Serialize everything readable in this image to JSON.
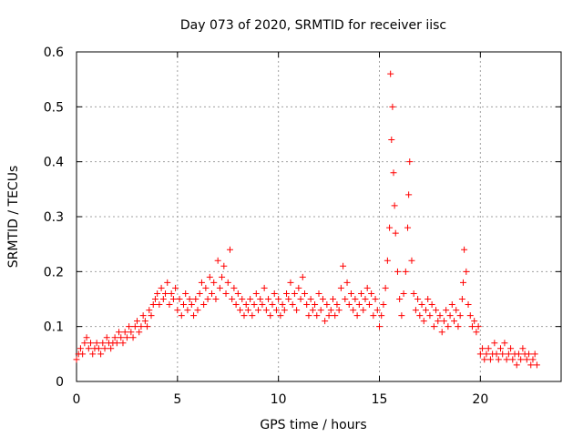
{
  "chart_data": {
    "type": "scatter",
    "title": "Day 073 of 2020, SRMTID for receiver iisc",
    "xlabel": "GPS time / hours",
    "ylabel": "SRMTID / TECUs",
    "xlim": [
      0,
      24
    ],
    "ylim": [
      0,
      0.6
    ],
    "x_ticks": [
      0,
      5,
      10,
      15,
      20
    ],
    "x_tick_labels": [
      "0",
      "5",
      "10",
      "15",
      "20"
    ],
    "y_ticks": [
      0,
      0.1,
      0.2,
      0.3,
      0.4,
      0.5,
      0.6
    ],
    "y_tick_labels": [
      "0",
      "0.1",
      "0.2",
      "0.3",
      "0.4",
      "0.5",
      "0.6"
    ],
    "grid": true,
    "marker": "+",
    "color": "#ff0000",
    "series": [
      {
        "name": "SRMTID",
        "x": [
          0.0,
          0.1,
          0.2,
          0.3,
          0.4,
          0.5,
          0.6,
          0.7,
          0.8,
          0.9,
          1.0,
          1.1,
          1.2,
          1.3,
          1.4,
          1.5,
          1.6,
          1.7,
          1.8,
          1.9,
          2.0,
          2.1,
          2.2,
          2.3,
          2.4,
          2.5,
          2.6,
          2.7,
          2.8,
          2.9,
          3.0,
          3.1,
          3.2,
          3.3,
          3.4,
          3.5,
          3.6,
          3.7,
          3.8,
          3.9,
          4.0,
          4.1,
          4.2,
          4.3,
          4.4,
          4.5,
          4.6,
          4.7,
          4.8,
          4.9,
          5.0,
          5.1,
          5.2,
          5.3,
          5.4,
          5.5,
          5.6,
          5.7,
          5.8,
          5.9,
          6.0,
          6.1,
          6.2,
          6.3,
          6.4,
          6.5,
          6.6,
          6.7,
          6.8,
          6.9,
          7.0,
          7.1,
          7.2,
          7.3,
          7.4,
          7.5,
          7.6,
          7.7,
          7.8,
          7.9,
          8.0,
          8.1,
          8.2,
          8.3,
          8.4,
          8.5,
          8.6,
          8.7,
          8.8,
          8.9,
          9.0,
          9.1,
          9.2,
          9.3,
          9.4,
          9.5,
          9.6,
          9.7,
          9.8,
          9.9,
          10.0,
          10.1,
          10.2,
          10.3,
          10.4,
          10.5,
          10.6,
          10.7,
          10.8,
          10.9,
          11.0,
          11.1,
          11.2,
          11.3,
          11.4,
          11.5,
          11.6,
          11.7,
          11.8,
          11.9,
          12.0,
          12.1,
          12.2,
          12.3,
          12.4,
          12.5,
          12.6,
          12.7,
          12.8,
          12.9,
          13.0,
          13.1,
          13.2,
          13.3,
          13.4,
          13.5,
          13.6,
          13.7,
          13.8,
          13.9,
          14.0,
          14.1,
          14.2,
          14.3,
          14.4,
          14.5,
          14.6,
          14.7,
          14.8,
          14.9,
          15.0,
          15.1,
          15.2,
          15.3,
          15.4,
          15.5,
          15.55,
          15.6,
          15.65,
          15.7,
          15.75,
          15.8,
          15.9,
          16.0,
          16.1,
          16.2,
          16.3,
          16.4,
          16.45,
          16.5,
          16.6,
          16.7,
          16.8,
          16.9,
          17.0,
          17.1,
          17.2,
          17.3,
          17.4,
          17.5,
          17.6,
          17.7,
          17.8,
          17.9,
          18.0,
          18.1,
          18.2,
          18.3,
          18.4,
          18.5,
          18.6,
          18.7,
          18.8,
          18.9,
          19.0,
          19.1,
          19.15,
          19.2,
          19.3,
          19.4,
          19.5,
          19.6,
          19.7,
          19.8,
          19.9,
          20.0,
          20.1,
          20.2,
          20.3,
          20.4,
          20.5,
          20.6,
          20.7,
          20.8,
          20.9,
          21.0,
          21.1,
          21.2,
          21.3,
          21.4,
          21.5,
          21.6,
          21.7,
          21.8,
          21.9,
          22.0,
          22.1,
          22.2,
          22.3,
          22.4,
          22.5,
          22.6,
          22.7,
          22.8
        ],
        "y": [
          0.04,
          0.05,
          0.06,
          0.05,
          0.07,
          0.08,
          0.06,
          0.07,
          0.05,
          0.06,
          0.07,
          0.06,
          0.05,
          0.07,
          0.06,
          0.08,
          0.07,
          0.06,
          0.07,
          0.08,
          0.07,
          0.09,
          0.08,
          0.07,
          0.09,
          0.08,
          0.1,
          0.09,
          0.08,
          0.1,
          0.11,
          0.09,
          0.1,
          0.12,
          0.11,
          0.1,
          0.13,
          0.12,
          0.14,
          0.15,
          0.16,
          0.14,
          0.17,
          0.15,
          0.16,
          0.18,
          0.14,
          0.16,
          0.15,
          0.17,
          0.13,
          0.15,
          0.12,
          0.14,
          0.16,
          0.13,
          0.15,
          0.14,
          0.12,
          0.15,
          0.13,
          0.16,
          0.18,
          0.14,
          0.17,
          0.15,
          0.19,
          0.16,
          0.18,
          0.15,
          0.22,
          0.17,
          0.19,
          0.21,
          0.16,
          0.18,
          0.24,
          0.15,
          0.17,
          0.14,
          0.16,
          0.13,
          0.15,
          0.12,
          0.14,
          0.13,
          0.15,
          0.12,
          0.14,
          0.16,
          0.13,
          0.15,
          0.14,
          0.17,
          0.13,
          0.15,
          0.12,
          0.14,
          0.16,
          0.13,
          0.15,
          0.12,
          0.14,
          0.13,
          0.16,
          0.15,
          0.18,
          0.14,
          0.16,
          0.13,
          0.17,
          0.15,
          0.19,
          0.16,
          0.14,
          0.12,
          0.15,
          0.13,
          0.14,
          0.12,
          0.16,
          0.13,
          0.15,
          0.11,
          0.14,
          0.12,
          0.13,
          0.15,
          0.12,
          0.14,
          0.13,
          0.17,
          0.21,
          0.15,
          0.18,
          0.14,
          0.16,
          0.13,
          0.15,
          0.12,
          0.14,
          0.16,
          0.13,
          0.15,
          0.17,
          0.14,
          0.16,
          0.12,
          0.15,
          0.13,
          0.1,
          0.12,
          0.14,
          0.17,
          0.22,
          0.28,
          0.56,
          0.44,
          0.5,
          0.38,
          0.32,
          0.27,
          0.2,
          0.15,
          0.12,
          0.16,
          0.2,
          0.28,
          0.34,
          0.4,
          0.22,
          0.16,
          0.13,
          0.15,
          0.12,
          0.14,
          0.11,
          0.13,
          0.15,
          0.12,
          0.14,
          0.1,
          0.13,
          0.11,
          0.12,
          0.09,
          0.11,
          0.13,
          0.1,
          0.12,
          0.14,
          0.11,
          0.13,
          0.1,
          0.12,
          0.15,
          0.18,
          0.24,
          0.2,
          0.14,
          0.12,
          0.1,
          0.11,
          0.09,
          0.1,
          0.05,
          0.06,
          0.04,
          0.05,
          0.06,
          0.04,
          0.05,
          0.07,
          0.05,
          0.04,
          0.06,
          0.05,
          0.07,
          0.04,
          0.05,
          0.06,
          0.04,
          0.05,
          0.03,
          0.05,
          0.04,
          0.06,
          0.05,
          0.04,
          0.05,
          0.03,
          0.04,
          0.05,
          0.03
        ]
      }
    ]
  }
}
